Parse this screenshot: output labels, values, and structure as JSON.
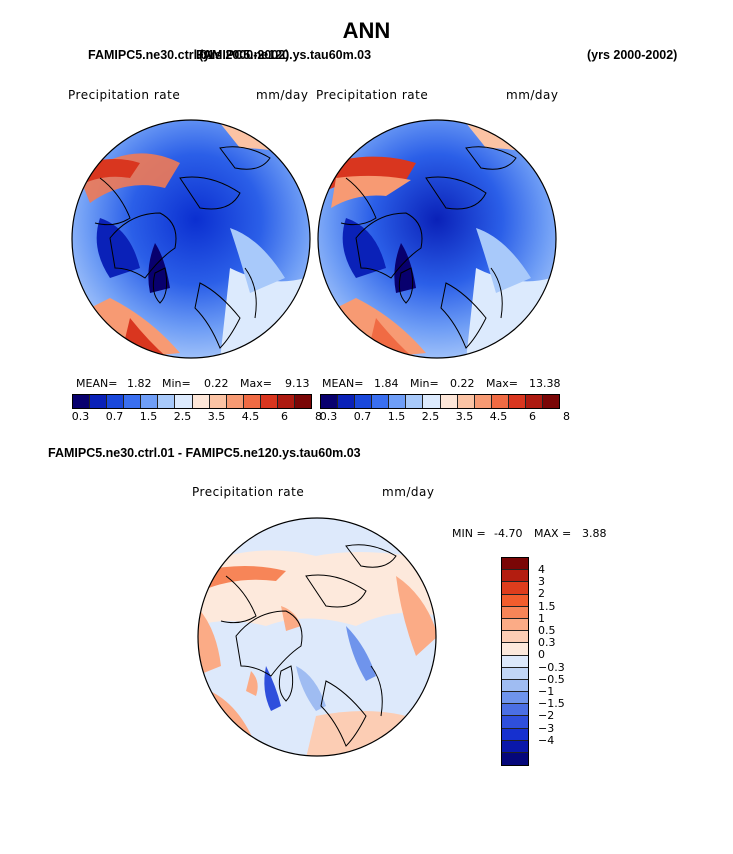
{
  "season": "ANN",
  "case1": "FAMIPC5.ne30.ctrl.01",
  "case2": "FAMIPC5.ne120.ys.tau60m.03",
  "left_header_overlap": "(yrs 2000-2002)",
  "right_header": "(yrs 2000-2002)",
  "var_label": "Precipitation rate",
  "units": "mm/day",
  "panel1": {
    "mean_label": "MEAN=",
    "mean": "1.82",
    "min_label": "Min=",
    "min": "0.22",
    "max_label": "Max=",
    "max": "9.13"
  },
  "panel2": {
    "mean_label": "MEAN=",
    "mean": "1.84",
    "min_label": "Min=",
    "min": "0.22",
    "max_label": "Max=",
    "max": "13.38"
  },
  "abs_colorbar": {
    "colors": [
      "#08006e",
      "#0a21b8",
      "#1a48db",
      "#3a6ff0",
      "#6f9ef7",
      "#a8c9fa",
      "#dceafd",
      "#fde6d8",
      "#fbc3a4",
      "#f79a73",
      "#f06b44",
      "#d9361f",
      "#ad1a10",
      "#7a0606"
    ],
    "tick_labels": [
      "0.3",
      "0.7",
      "1.5",
      "2.5",
      "3.5",
      "4.5",
      "6",
      "8"
    ]
  },
  "diff_title": "FAMIPC5.ne30.ctrl.01 - FAMIPC5.ne120.ys.tau60m.03",
  "diff_stats": {
    "min_label": "MIN =",
    "min": "-4.70",
    "max_label": "MAX =",
    "max": "3.88"
  },
  "diff_colorbar": {
    "colors": [
      "#7a0606",
      "#b31d10",
      "#de3d1d",
      "#f25d2d",
      "#f78558",
      "#fbab86",
      "#fccdb4",
      "#fde9dc",
      "#dde9fb",
      "#c2d6f6",
      "#9fbcf2",
      "#6f94ec",
      "#4b6fe4",
      "#2f4fdc",
      "#1630cf",
      "#0a18aa",
      "#05077a"
    ],
    "tick_labels": [
      "4",
      "3",
      "2",
      "1.5",
      "1",
      "0.5",
      "0.3",
      "0",
      "-0.3",
      "-0.5",
      "-1",
      "-1.5",
      "-2",
      "-3",
      "-4"
    ]
  }
}
